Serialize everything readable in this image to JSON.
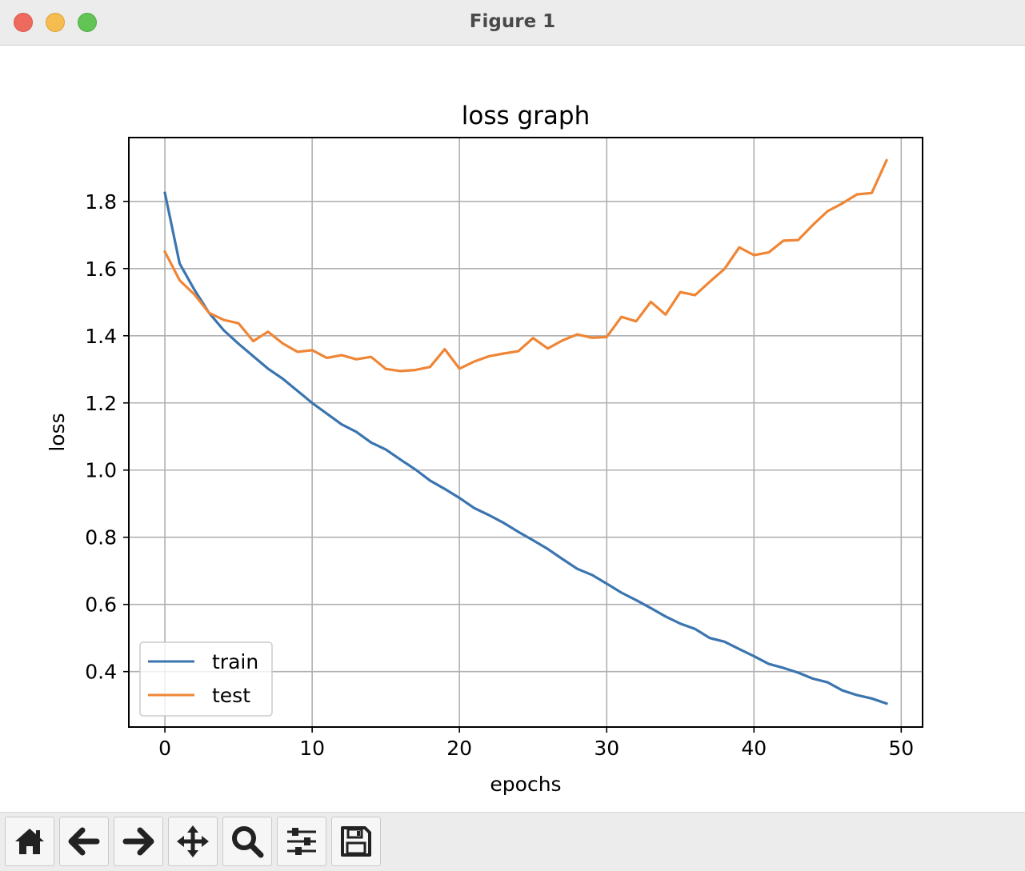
{
  "window": {
    "title": "Figure 1"
  },
  "toolbar": {
    "buttons": [
      {
        "name": "home",
        "icon": "home-icon"
      },
      {
        "name": "back",
        "icon": "arrow-left-icon"
      },
      {
        "name": "forward",
        "icon": "arrow-right-icon"
      },
      {
        "name": "pan",
        "icon": "move-icon"
      },
      {
        "name": "zoom",
        "icon": "magnifier-icon"
      },
      {
        "name": "configure-subplots",
        "icon": "sliders-icon"
      },
      {
        "name": "save",
        "icon": "floppy-disk-icon"
      }
    ]
  },
  "chart_data": {
    "type": "line",
    "title": "loss graph",
    "xlabel": "epochs",
    "ylabel": "loss",
    "xlim": [
      -2.45,
      51.45
    ],
    "ylim": [
      0.235,
      1.99
    ],
    "xticks": [
      0,
      10,
      20,
      30,
      40,
      50
    ],
    "xtick_labels": [
      "0",
      "10",
      "20",
      "30",
      "40",
      "50"
    ],
    "yticks": [
      0.4,
      0.6,
      0.8,
      1.0,
      1.2,
      1.4,
      1.6,
      1.8
    ],
    "ytick_labels": [
      "0.4",
      "0.6",
      "0.8",
      "1.0",
      "1.2",
      "1.4",
      "1.6",
      "1.8"
    ],
    "grid": true,
    "legend": {
      "position": "lower-left"
    },
    "x": [
      0,
      1,
      2,
      3,
      4,
      5,
      6,
      7,
      8,
      9,
      10,
      11,
      12,
      13,
      14,
      15,
      16,
      17,
      18,
      19,
      20,
      21,
      22,
      23,
      24,
      25,
      26,
      27,
      28,
      29,
      30,
      31,
      32,
      33,
      34,
      35,
      36,
      37,
      38,
      39,
      40,
      41,
      42,
      43,
      44,
      45,
      46,
      47,
      48,
      49
    ],
    "series": [
      {
        "name": "train",
        "color": "#3b75af",
        "values": [
          1.825,
          1.615,
          1.537,
          1.468,
          1.416,
          1.376,
          1.339,
          1.302,
          1.272,
          1.236,
          1.2,
          1.168,
          1.136,
          1.114,
          1.082,
          1.061,
          1.031,
          1.002,
          0.969,
          0.944,
          0.917,
          0.887,
          0.866,
          0.843,
          0.816,
          0.791,
          0.765,
          0.735,
          0.706,
          0.688,
          0.662,
          0.635,
          0.613,
          0.589,
          0.564,
          0.543,
          0.527,
          0.5,
          0.489,
          0.467,
          0.446,
          0.423,
          0.411,
          0.397,
          0.379,
          0.368,
          0.344,
          0.33,
          0.32,
          0.305
        ]
      },
      {
        "name": "test",
        "color": "#ef8636",
        "values": [
          1.65,
          1.565,
          1.523,
          1.468,
          1.447,
          1.437,
          1.384,
          1.412,
          1.377,
          1.352,
          1.357,
          1.334,
          1.342,
          1.33,
          1.337,
          1.301,
          1.295,
          1.298,
          1.307,
          1.36,
          1.302,
          1.323,
          1.339,
          1.347,
          1.354,
          1.393,
          1.362,
          1.386,
          1.404,
          1.394,
          1.396,
          1.456,
          1.443,
          1.501,
          1.463,
          1.53,
          1.521,
          1.561,
          1.599,
          1.663,
          1.64,
          1.648,
          1.683,
          1.685,
          1.73,
          1.771,
          1.794,
          1.821,
          1.825,
          1.922
        ]
      }
    ]
  }
}
